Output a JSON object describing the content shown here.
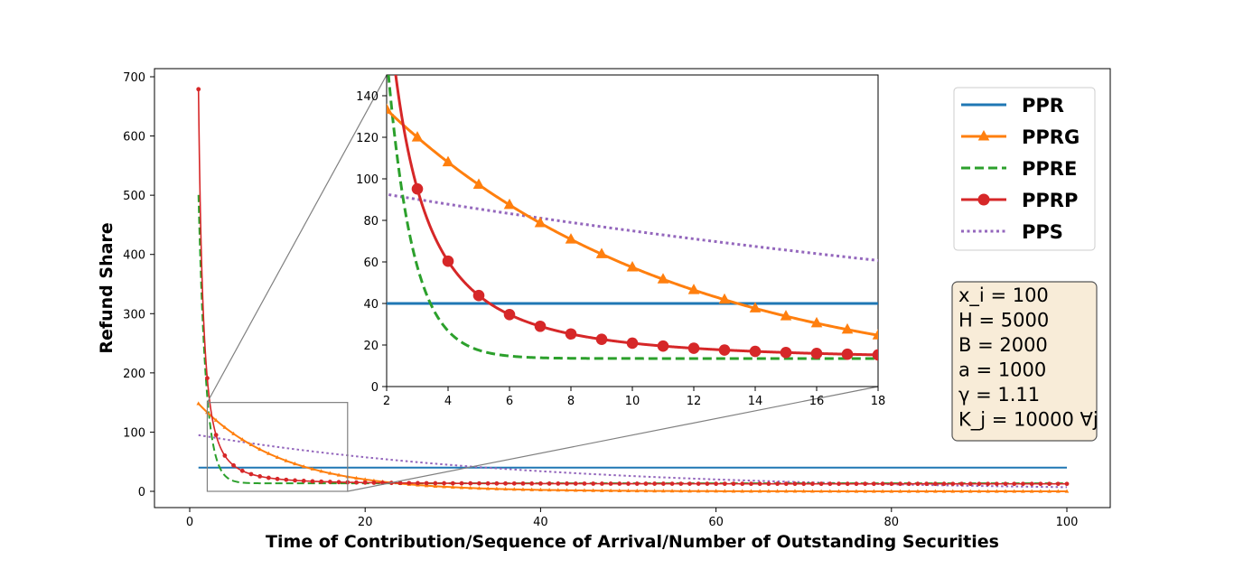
{
  "chart_data": {
    "type": "line",
    "title": "",
    "xlabel": "Time of Contribution/Sequence of Arrival/Number of Outstanding Securities",
    "ylabel": "Refund Share",
    "xlim": [
      -4,
      105
    ],
    "ylim": [
      -25,
      715
    ],
    "xticks": [
      0,
      20,
      40,
      60,
      80,
      100
    ],
    "yticks": [
      0,
      100,
      200,
      300,
      400,
      500,
      600,
      700
    ],
    "grid": false,
    "legend_position": "top-right",
    "colors": {
      "PPR": "#1f77b4",
      "PPRG": "#ff7f0e",
      "PPRE": "#2ca02c",
      "PPRP": "#d62728",
      "PPS": "#9467bd"
    },
    "series": [
      {
        "name": "PPR",
        "style": "solid",
        "marker": "none",
        "formula": "40"
      },
      {
        "name": "PPRG",
        "style": "solid",
        "marker": "triangle",
        "formula": "133.3 * 0.9 ^ (x - 2)"
      },
      {
        "name": "PPRE",
        "style": "dashed",
        "marker": "none",
        "formula": "13.5 + 487 * exp(-1.2 * (x - 1))"
      },
      {
        "name": "PPRP",
        "style": "solid",
        "marker": "circle",
        "formula": "12.5 + 666.5 / (x ^ 1.9)"
      },
      {
        "name": "PPS",
        "style": "dotted",
        "marker": "none",
        "formula": "95 * 0.974 ^ (x - 1)"
      }
    ],
    "x_range": [
      1,
      100
    ],
    "parameters": [
      "x_i = 100",
      "H = 5000",
      "B = 2000",
      "a = 1000",
      "γ = 1.11",
      "K_j = 10000 ∀j"
    ],
    "inset": {
      "xlim": [
        2,
        18
      ],
      "ylim": [
        0,
        150
      ],
      "xticks": [
        2,
        4,
        6,
        8,
        10,
        12,
        14,
        16,
        18
      ],
      "yticks": [
        0,
        20,
        40,
        60,
        80,
        100,
        120,
        140
      ]
    }
  }
}
